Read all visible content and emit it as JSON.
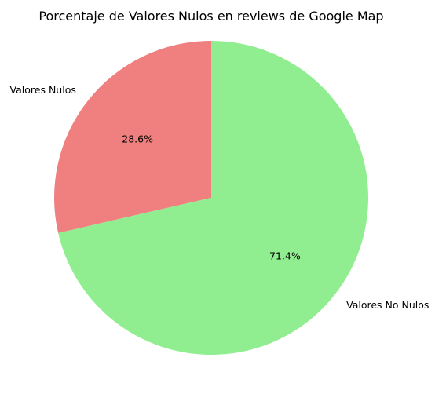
{
  "chart_data": {
    "type": "pie",
    "title": "Porcentaje de Valores Nulos en reviews de Google Map",
    "slices": [
      {
        "label": "Valores Nulos",
        "value": 28.6,
        "pct_label": "28.6%",
        "color": "#f08080"
      },
      {
        "label": "Valores No Nulos",
        "value": 71.4,
        "pct_label": "71.4%",
        "color": "#90ee90"
      }
    ],
    "start_angle": 90,
    "direction": "counterclockwise"
  }
}
